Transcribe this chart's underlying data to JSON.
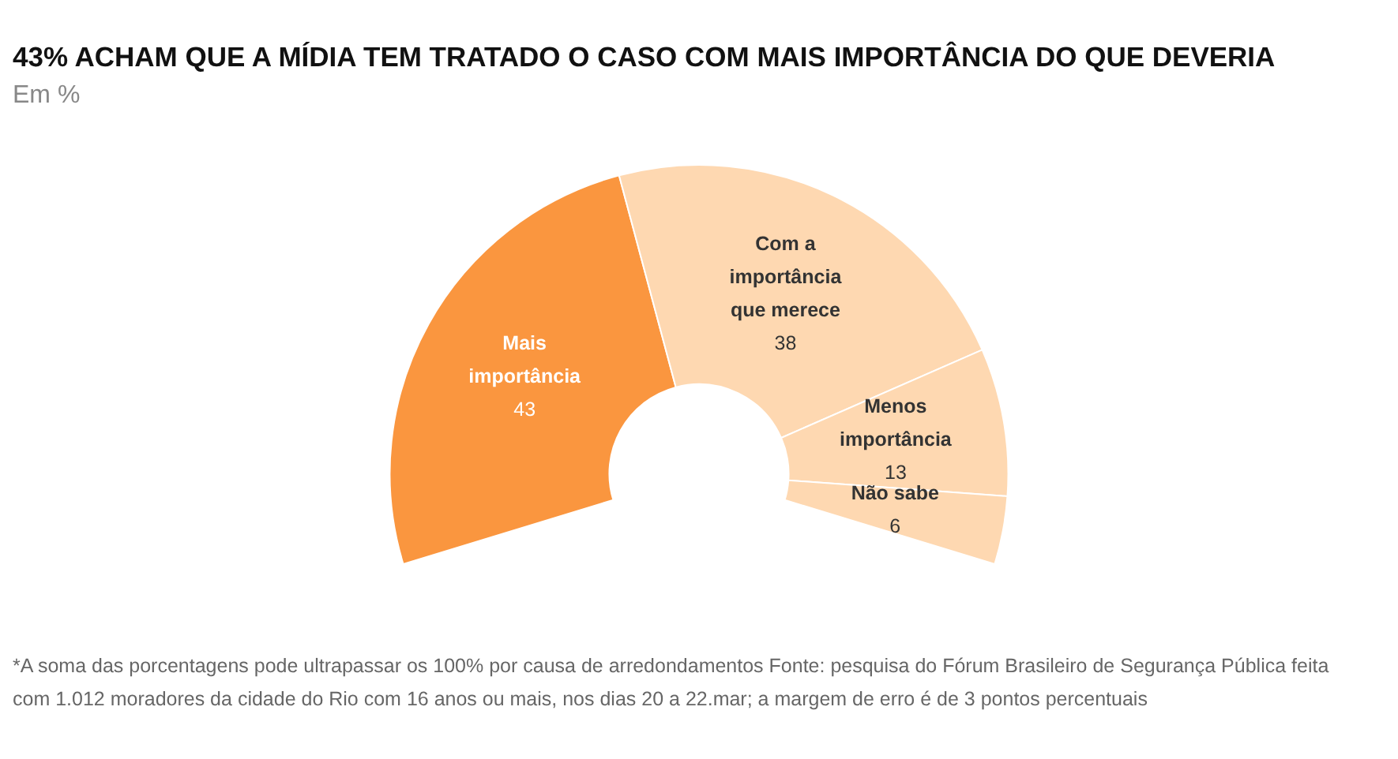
{
  "chart_data": {
    "type": "donut",
    "title": "43% ACHAM QUE A MÍDIA TEM TRATADO O CASO COM MAIS IMPORTÂNCIA DO QUE DEVERIA",
    "subtitle": "Em %",
    "categories": [
      "Mais importância",
      "Com a importância que merece",
      "Menos importância",
      "Não sabe"
    ],
    "values": [
      43,
      38,
      13,
      6
    ],
    "colors": [
      "#fa963f",
      "#fed8b1",
      "#fed8b1",
      "#fed8b1"
    ],
    "data_labels": true,
    "legend": false,
    "annotations": [
      "*A soma das porcentagens pode ultrapassar os 100% por causa de arredondamentos Fonte: pesquisa do Fórum Brasileiro de Segurança Pública feita com 1.012 moradores da cidade do Rio com 16 anos ou mais, nos dias 20 a 22.mar; a margem de erro é de 3 pontos percentuais"
    ]
  }
}
